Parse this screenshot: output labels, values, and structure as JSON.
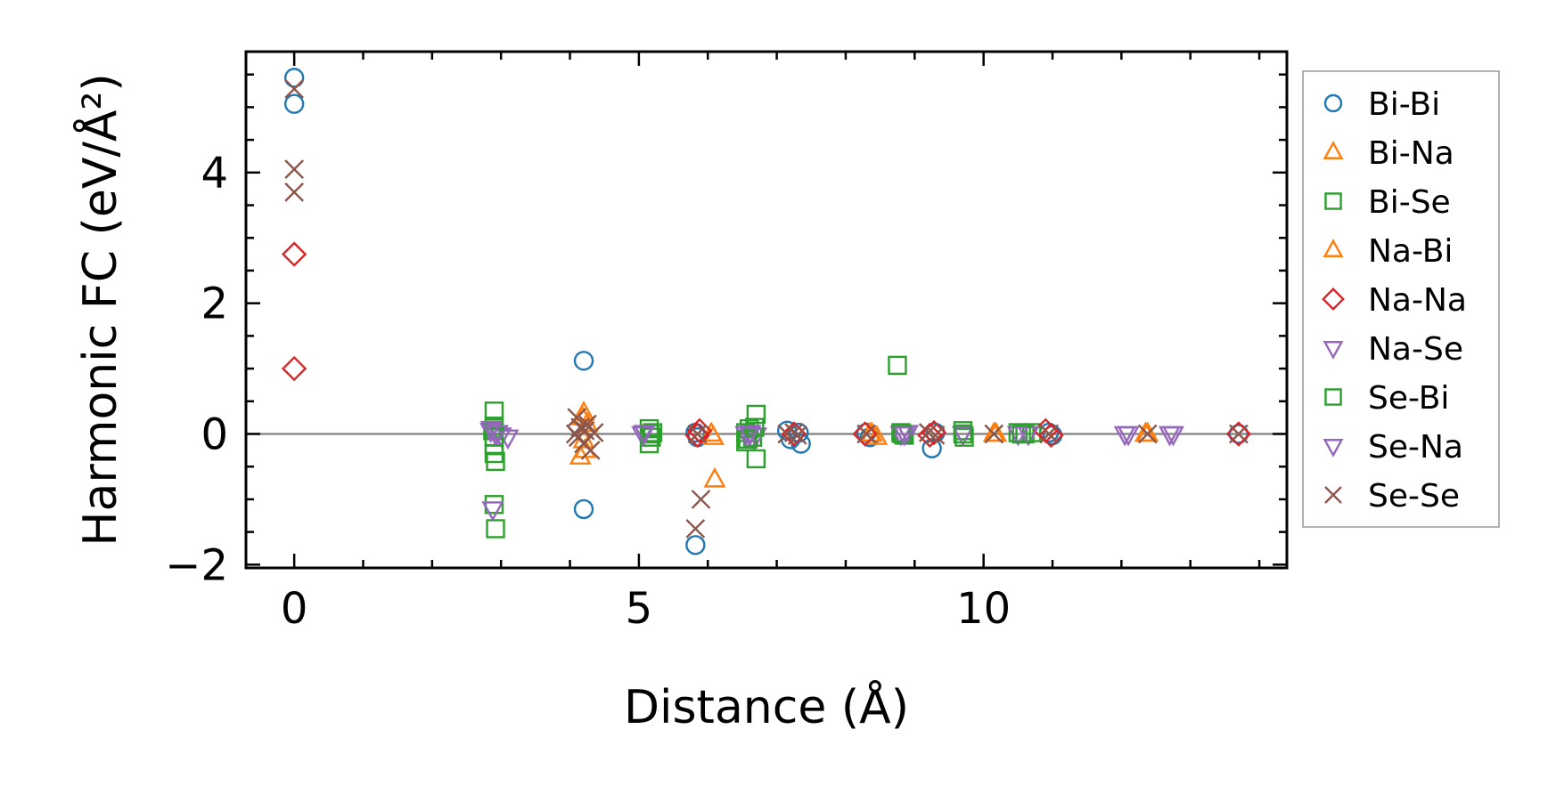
{
  "chart_data": {
    "type": "scatter",
    "title": "",
    "xlabel": "Distance (Å)",
    "ylabel": "Harmonic FC (eV/Å²)",
    "xlim": [
      -0.7,
      14.4
    ],
    "ylim": [
      -2.05,
      5.85
    ],
    "xticks": [
      0,
      5,
      10
    ],
    "xtick_labels": [
      "0",
      "5",
      "10"
    ],
    "yticks": [
      -2,
      0,
      2,
      4
    ],
    "ytick_labels": [
      "−2",
      "0",
      "2",
      "4"
    ],
    "zero_line": true,
    "grid": false,
    "legend_position": "right, outside",
    "series": [
      {
        "name": "Bi-Bi",
        "marker": "circle",
        "color": "#1f77b4",
        "points": [
          [
            0,
            5.45
          ],
          [
            0,
            5.05
          ],
          [
            4.2,
            1.12
          ],
          [
            4.2,
            -1.15
          ],
          [
            5.82,
            -1.7
          ],
          [
            5.82,
            0.02
          ],
          [
            5.85,
            -0.05
          ],
          [
            7.15,
            0.05
          ],
          [
            7.2,
            -0.08
          ],
          [
            7.32,
            0.02
          ],
          [
            7.35,
            -0.15
          ],
          [
            8.3,
            0.02
          ],
          [
            8.35,
            -0.05
          ],
          [
            9.25,
            -0.22
          ],
          [
            9.3,
            0.02
          ],
          [
            10.95,
            0.02
          ],
          [
            11.0,
            -0.02
          ],
          [
            13.7,
            0.0
          ]
        ]
      },
      {
        "name": "Bi-Na",
        "marker": "triangle-up",
        "color": "#ff7f0e",
        "points": [
          [
            4.2,
            0.32
          ],
          [
            4.15,
            -0.35
          ],
          [
            4.25,
            0.15
          ],
          [
            4.2,
            -0.1
          ],
          [
            6.05,
            0.0
          ],
          [
            6.1,
            -0.7
          ],
          [
            8.35,
            0.0
          ],
          [
            8.45,
            -0.05
          ],
          [
            10.15,
            0.0
          ],
          [
            12.35,
            0.0
          ]
        ]
      },
      {
        "name": "Bi-Se",
        "marker": "square",
        "color": "#2ca02c",
        "points": [
          [
            2.9,
            0.35
          ],
          [
            2.9,
            -0.3
          ],
          [
            2.92,
            -0.42
          ],
          [
            2.88,
            0.05
          ],
          [
            2.9,
            -0.18
          ],
          [
            2.9,
            -1.08
          ],
          [
            2.92,
            -1.45
          ],
          [
            5.15,
            0.08
          ],
          [
            5.18,
            -0.05
          ],
          [
            5.15,
            -0.15
          ],
          [
            5.2,
            0.02
          ],
          [
            6.55,
            0.02
          ],
          [
            6.55,
            -0.12
          ],
          [
            6.6,
            0.08
          ],
          [
            6.65,
            -0.05
          ],
          [
            6.7,
            0.3
          ],
          [
            6.7,
            -0.38
          ],
          [
            8.75,
            1.05
          ],
          [
            8.8,
            0.02
          ],
          [
            8.85,
            -0.02
          ],
          [
            9.7,
            0.05
          ],
          [
            9.72,
            -0.05
          ],
          [
            10.5,
            0.02
          ],
          [
            10.6,
            0.0
          ],
          [
            10.7,
            0.02
          ]
        ]
      },
      {
        "name": "Na-Bi",
        "marker": "triangle-up",
        "color": "#ff7f0e",
        "points": [
          [
            4.18,
            0.25
          ],
          [
            4.22,
            -0.25
          ],
          [
            6.08,
            -0.05
          ],
          [
            8.38,
            0.0
          ],
          [
            10.18,
            0.0
          ],
          [
            12.38,
            0.0
          ]
        ]
      },
      {
        "name": "Na-Na",
        "marker": "diamond",
        "color": "#d62728",
        "points": [
          [
            0,
            2.75
          ],
          [
            0,
            1.0
          ],
          [
            5.85,
            -0.02
          ],
          [
            5.88,
            0.05
          ],
          [
            7.25,
            0.0
          ],
          [
            8.28,
            0.0
          ],
          [
            9.22,
            -0.02
          ],
          [
            9.28,
            0.02
          ],
          [
            10.9,
            0.05
          ],
          [
            10.98,
            -0.02
          ],
          [
            13.7,
            0.0
          ]
        ]
      },
      {
        "name": "Na-Se",
        "marker": "triangle-down",
        "color": "#9467bd",
        "points": [
          [
            2.85,
            0.05
          ],
          [
            2.92,
            0.0
          ],
          [
            3.0,
            -0.02
          ],
          [
            3.1,
            -0.05
          ],
          [
            2.88,
            -1.15
          ],
          [
            5.05,
            0.0
          ],
          [
            6.55,
            0.0
          ],
          [
            6.62,
            0.02
          ],
          [
            6.7,
            -0.02
          ],
          [
            8.8,
            0.0
          ],
          [
            8.9,
            0.02
          ],
          [
            9.7,
            0.0
          ],
          [
            10.5,
            0.0
          ],
          [
            10.65,
            0.0
          ],
          [
            12.05,
            0.0
          ],
          [
            12.75,
            0.0
          ]
        ]
      },
      {
        "name": "Se-Bi",
        "marker": "square",
        "color": "#2ca02c",
        "points": [
          [
            2.9,
            0.12
          ],
          [
            2.9,
            -0.05
          ],
          [
            5.16,
            0.0
          ],
          [
            6.58,
            -0.08
          ],
          [
            6.68,
            0.1
          ],
          [
            8.82,
            0.0
          ],
          [
            9.7,
            0.0
          ],
          [
            10.55,
            0.0
          ]
        ]
      },
      {
        "name": "Se-Na",
        "marker": "triangle-down",
        "color": "#9467bd",
        "points": [
          [
            2.86,
            0.08
          ],
          [
            2.95,
            0.02
          ],
          [
            5.08,
            0.02
          ],
          [
            6.6,
            0.0
          ],
          [
            8.85,
            0.0
          ],
          [
            12.1,
            0.0
          ],
          [
            12.7,
            0.0
          ]
        ]
      },
      {
        "name": "Se-Se",
        "marker": "x",
        "color": "#8c564b",
        "points": [
          [
            0,
            5.28
          ],
          [
            0,
            4.05
          ],
          [
            0,
            3.7
          ],
          [
            4.1,
            0.25
          ],
          [
            4.15,
            0.1
          ],
          [
            4.12,
            -0.05
          ],
          [
            4.2,
            -0.15
          ],
          [
            4.25,
            0.15
          ],
          [
            4.3,
            -0.25
          ],
          [
            4.08,
            0.0
          ],
          [
            4.35,
            0.02
          ],
          [
            4.22,
            0.05
          ],
          [
            5.82,
            -1.45
          ],
          [
            5.9,
            -1.0
          ],
          [
            5.85,
            0.0
          ],
          [
            7.15,
            0.0
          ],
          [
            7.25,
            0.02
          ],
          [
            7.3,
            -0.02
          ],
          [
            8.3,
            0.0
          ],
          [
            9.2,
            0.02
          ],
          [
            9.3,
            -0.02
          ],
          [
            10.15,
            0.0
          ],
          [
            10.95,
            0.0
          ],
          [
            12.38,
            0.0
          ],
          [
            13.7,
            0.0
          ]
        ]
      }
    ]
  }
}
